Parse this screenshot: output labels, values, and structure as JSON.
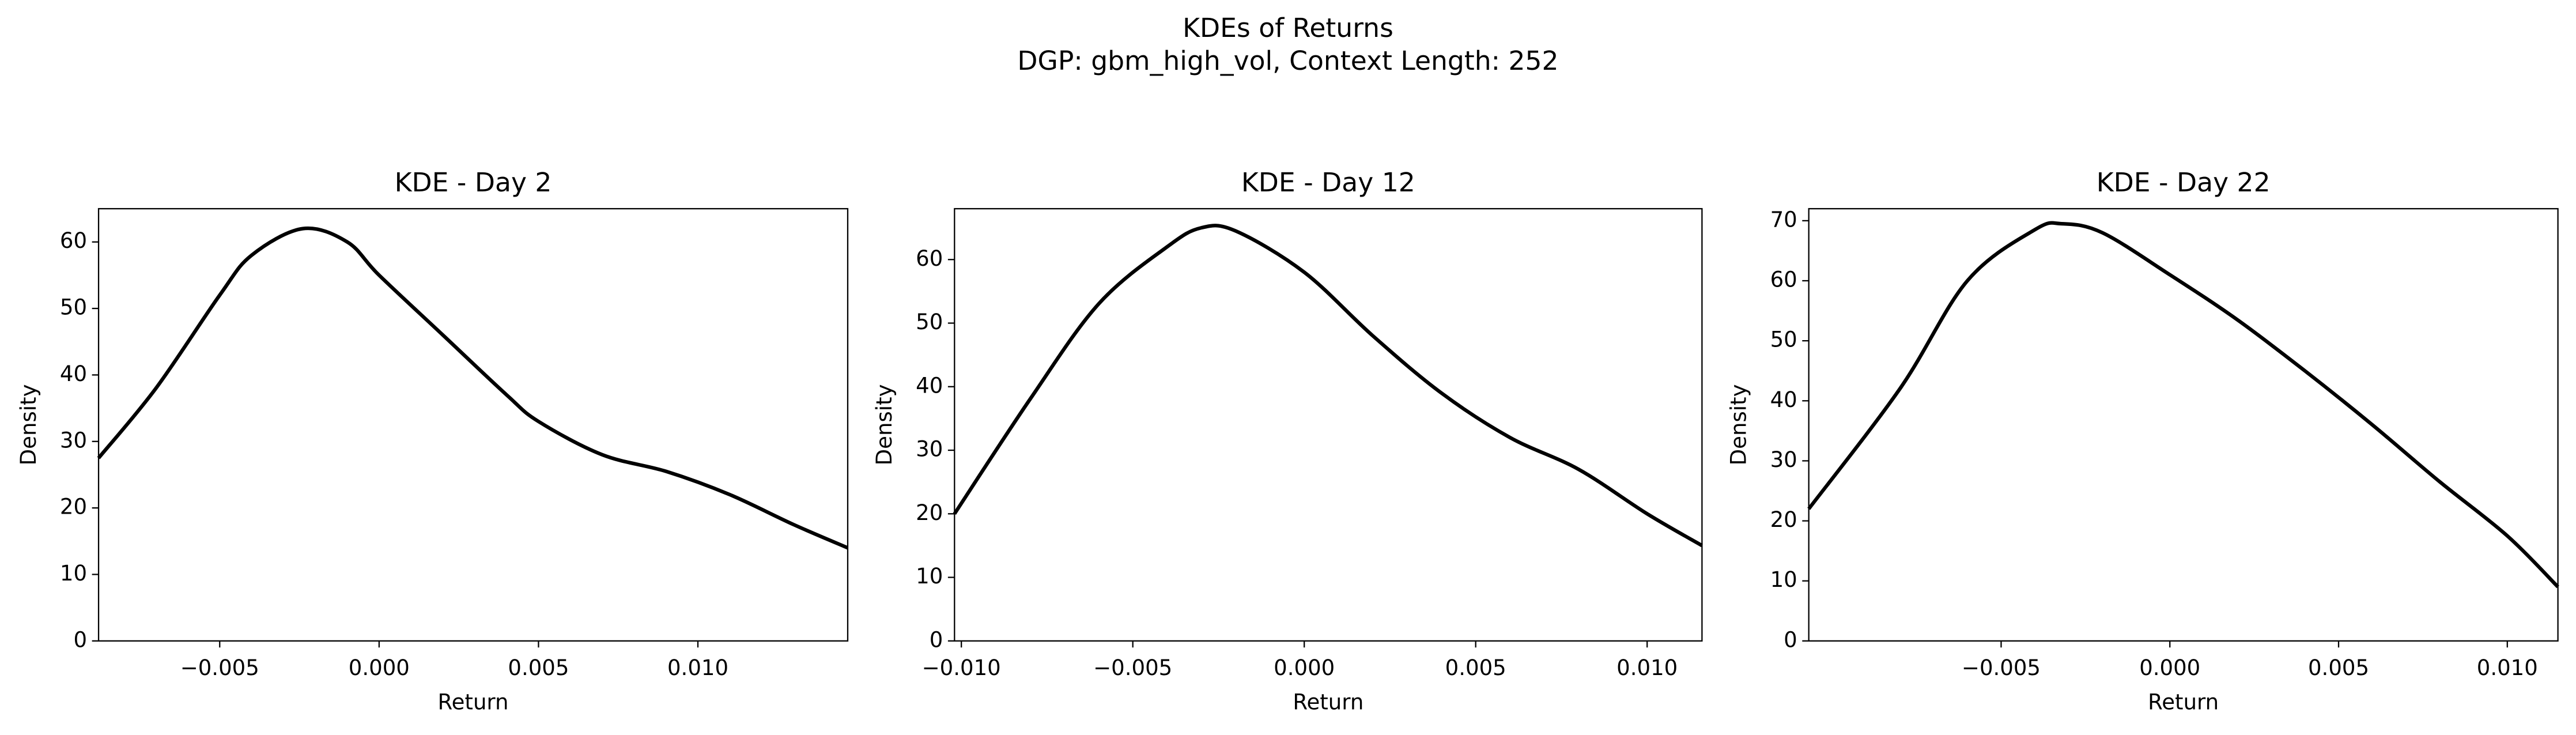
{
  "title": "KDEs of Returns",
  "subtitle": "DGP: gbm_high_vol, Context Length: 252",
  "chart_data": [
    {
      "type": "line",
      "title": "KDE - Day 2",
      "xlabel": "Return",
      "ylabel": "Density",
      "color": "#000000",
      "x": [
        -0.0088,
        -0.007,
        -0.005,
        -0.004,
        -0.0024,
        -0.001,
        0,
        0.002,
        0.004,
        0.005,
        0.007,
        0.009,
        0.011,
        0.013,
        0.0147
      ],
      "values": [
        27.5,
        38,
        52,
        58,
        62,
        60,
        55,
        46,
        37,
        33,
        28,
        25.5,
        22,
        17.5,
        14
      ],
      "xlim": [
        -0.0088,
        0.0147
      ],
      "ylim": [
        0,
        65
      ],
      "xticks": [
        {
          "value": -0.005,
          "label": "−0.005"
        },
        {
          "value": 0,
          "label": "0.000"
        },
        0.005,
        {
          "value": 0.01,
          "label": "0.010"
        }
      ],
      "yticks": [
        0,
        10,
        20,
        30,
        40,
        50,
        60
      ]
    },
    {
      "type": "line",
      "title": "KDE - Day 12",
      "xlabel": "Return",
      "ylabel": "Density",
      "color": "#000000",
      "x": [
        -0.0102,
        -0.008,
        -0.006,
        -0.004,
        -0.003,
        -0.002,
        0,
        0.002,
        0.004,
        0.006,
        0.008,
        0.01,
        0.0116
      ],
      "values": [
        20,
        38,
        53,
        62,
        65,
        64.5,
        58,
        48,
        39,
        32,
        27,
        20,
        15
      ],
      "xlim": [
        -0.0102,
        0.0116
      ],
      "ylim": [
        0,
        68
      ],
      "xticks": [
        {
          "value": -0.01,
          "label": "−0.010"
        },
        {
          "value": -0.005,
          "label": "−0.005"
        },
        {
          "value": 0,
          "label": "0.000"
        },
        0.005,
        {
          "value": 0.01,
          "label": "0.010"
        }
      ],
      "yticks": [
        0,
        10,
        20,
        30,
        40,
        50,
        60
      ]
    },
    {
      "type": "line",
      "title": "KDE - Day 22",
      "xlabel": "Return",
      "ylabel": "Density",
      "color": "#000000",
      "x": [
        -0.0107,
        -0.008,
        -0.006,
        -0.004,
        -0.0032,
        -0.002,
        0,
        0.002,
        0.004,
        0.006,
        0.008,
        0.01,
        0.0115
      ],
      "values": [
        22,
        42,
        60,
        68.5,
        69.5,
        68,
        61,
        53.5,
        45,
        36,
        26.5,
        17.5,
        9
      ],
      "xlim": [
        -0.0107,
        0.0115
      ],
      "ylim": [
        0,
        72
      ],
      "xticks": [
        {
          "value": -0.005,
          "label": "−0.005"
        },
        {
          "value": 0,
          "label": "0.000"
        },
        0.005,
        {
          "value": 0.01,
          "label": "0.010"
        }
      ],
      "yticks": [
        0,
        10,
        20,
        30,
        40,
        50,
        60,
        70
      ]
    }
  ]
}
